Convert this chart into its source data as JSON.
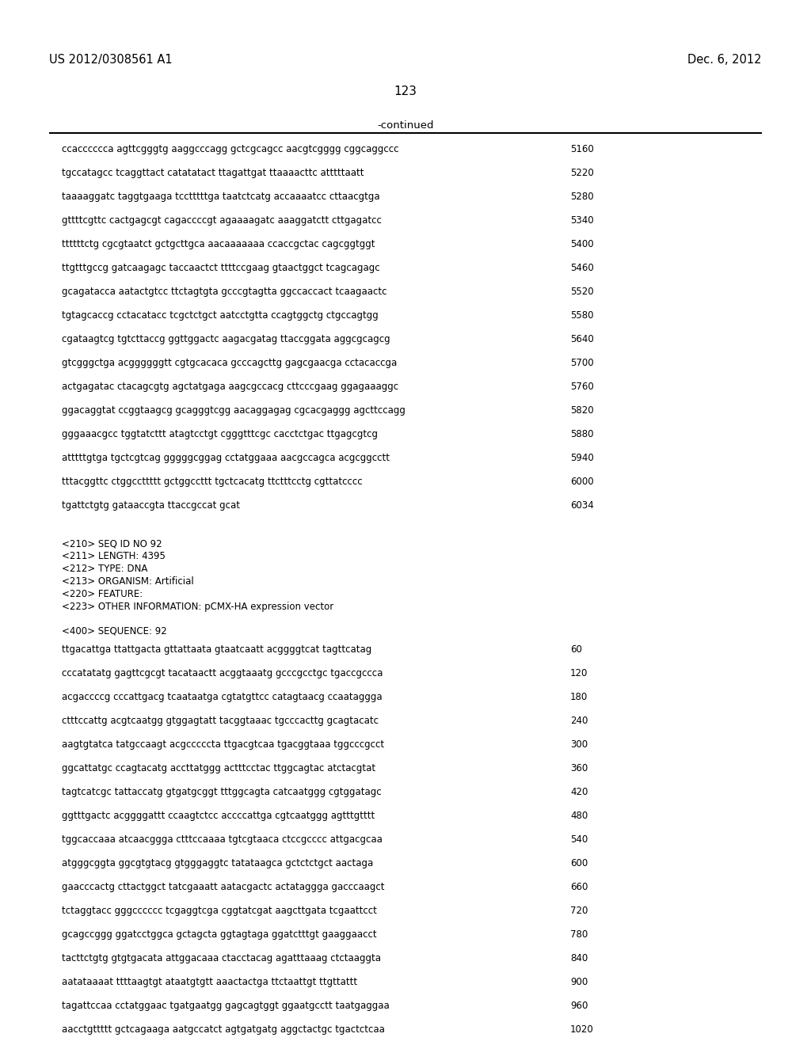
{
  "header_left": "US 2012/0308561 A1",
  "header_right": "Dec. 6, 2012",
  "page_number": "123",
  "continued_label": "-continued",
  "background_color": "#ffffff",
  "text_color": "#000000",
  "font_size_header": 10.5,
  "font_size_page": 11,
  "font_size_body": 8.5,
  "font_size_continued": 9.5,
  "sequence_lines_top": [
    [
      "ccacccccca agttcgggtg aaggcccagg gctcgcagcc aacgtcgggg cggcaggccc",
      "5160"
    ],
    [
      "tgccatagcc tcaggttact catatatact ttagattgat ttaaaacttc atttttaatt",
      "5220"
    ],
    [
      "taaaaggatc taggtgaaga tcctttttga taatctcatg accaaaatcc cttaacgtga",
      "5280"
    ],
    [
      "gttttcgttc cactgagcgt cagaccccgt agaaaagatc aaaggatctt cttgagatcc",
      "5340"
    ],
    [
      "ttttttctg cgcgtaatct gctgcttgca aacaaaaaaa ccaccgctac cagcggtggt",
      "5400"
    ],
    [
      "ttgtttgccg gatcaagagc taccaactct ttttccgaag gtaactggct tcagcagagc",
      "5460"
    ],
    [
      "gcagatacca aatactgtcc ttctagtgta gcccgtagtta ggccaccact tcaagaactc",
      "5520"
    ],
    [
      "tgtagcaccg cctacatacc tcgctctgct aatcctgtta ccagtggctg ctgccagtgg",
      "5580"
    ],
    [
      "cgataagtcg tgtcttaccg ggttggactc aagacgatag ttaccggata aggcgcagcg",
      "5640"
    ],
    [
      "gtcgggctga acggggggtt cgtgcacaca gcccagcttg gagcgaacga cctacaccga",
      "5700"
    ],
    [
      "actgagatac ctacagcgtg agctatgaga aagcgccacg cttcccgaag ggagaaaggc",
      "5760"
    ],
    [
      "ggacaggtat ccggtaagcg gcagggtcgg aacaggagag cgcacgaggg agcttccagg",
      "5820"
    ],
    [
      "gggaaacgcc tggtatcttt atagtcctgt cgggtttcgc cacctctgac ttgagcgtcg",
      "5880"
    ],
    [
      "atttttgtga tgctcgtcag gggggcggag cctatggaaa aacgccagca acgcggcctt",
      "5940"
    ],
    [
      "tttacggttc ctggccttttt gctggccttt tgctcacatg ttctttcctg cgttatcccc",
      "6000"
    ],
    [
      "tgattctgtg gataaccgta ttaccgccat gcat",
      "6034"
    ]
  ],
  "metadata_lines": [
    "<210> SEQ ID NO 92",
    "<211> LENGTH: 4395",
    "<212> TYPE: DNA",
    "<213> ORGANISM: Artificial",
    "<220> FEATURE:",
    "<223> OTHER INFORMATION: pCMX-HA expression vector"
  ],
  "sequence_label": "<400> SEQUENCE: 92",
  "sequence_lines_bottom": [
    [
      "ttgacattga ttattgacta gttattaata gtaatcaatt acggggtcat tagttcatag",
      "60"
    ],
    [
      "cccatatatg gagttcgcgt tacataactt acggtaaatg gcccgcctgc tgaccgccca",
      "120"
    ],
    [
      "acgaccccg cccattgacg tcaataatga cgtatgttcc catagtaacg ccaataggga",
      "180"
    ],
    [
      "ctttccattg acgtcaatgg gtggagtatt tacggtaaac tgcccacttg gcagtacatc",
      "240"
    ],
    [
      "aagtgtatca tatgccaagt acgcccccta ttgacgtcaa tgacggtaaa tggcccgcct",
      "300"
    ],
    [
      "ggcattatgc ccagtacatg accttatggg actttcctac ttggcagtac atctacgtat",
      "360"
    ],
    [
      "tagtcatcgc tattaccatg gtgatgcggt tttggcagta catcaatggg cgtggatagc",
      "420"
    ],
    [
      "ggtttgactc acggggattt ccaagtctcc accccattga cgtcaatggg agtttgtttt",
      "480"
    ],
    [
      "tggcaccaaa atcaacggga ctttccaaaa tgtcgtaaca ctccgcccc attgacgcaa",
      "540"
    ],
    [
      "atgggcggta ggcgtgtacg gtgggaggtc tatataagca gctctctgct aactaga",
      "600"
    ],
    [
      "gaacccactg cttactggct tatcgaaatt aatacgactc actataggga gacccaagct",
      "660"
    ],
    [
      "tctaggtacc gggcccccc tcgaggtcga cggtatcgat aagcttgata tcgaattcct",
      "720"
    ],
    [
      "gcagccggg ggatcctggca gctagcta ggtagtaga ggatctttgt gaaggaacct",
      "780"
    ],
    [
      "tacttctgtg gtgtgacata attggacaaa ctacctacag agatttaaag ctctaaggta",
      "840"
    ],
    [
      "aatataaaat ttttaagtgt ataatgtgtt aaactactga ttctaattgt ttgttattt",
      "900"
    ],
    [
      "tagattccaa cctatggaac tgatgaatgg gagcagtggt ggaatgcctt taatgaggaa",
      "960"
    ],
    [
      "aacctgttttt gctcagaaga aatgccatct agtgatgatg aggctactgc tgactctcaa",
      "1020"
    ]
  ]
}
